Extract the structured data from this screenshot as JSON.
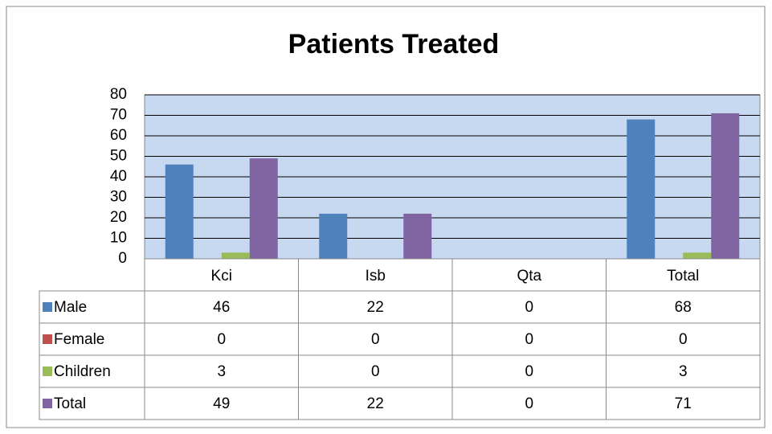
{
  "chart_data": {
    "type": "bar",
    "title": "Patients Treated",
    "categories": [
      "Kci",
      "Isb",
      "Qta",
      "Total"
    ],
    "series": [
      {
        "name": "Male",
        "color": "#4f81bd",
        "values": [
          46,
          22,
          0,
          68
        ]
      },
      {
        "name": "Female",
        "color": "#c0504d",
        "values": [
          0,
          0,
          0,
          0
        ]
      },
      {
        "name": "Children",
        "color": "#9bbb59",
        "values": [
          3,
          0,
          0,
          3
        ]
      },
      {
        "name": "Total",
        "color": "#8064a2",
        "values": [
          49,
          22,
          0,
          71
        ]
      }
    ],
    "ylim": [
      0,
      80
    ],
    "yticks": [
      0,
      10,
      20,
      30,
      40,
      50,
      60,
      70,
      80
    ],
    "grid": true,
    "plot_background": "#c6d9f1",
    "data_table": true
  }
}
